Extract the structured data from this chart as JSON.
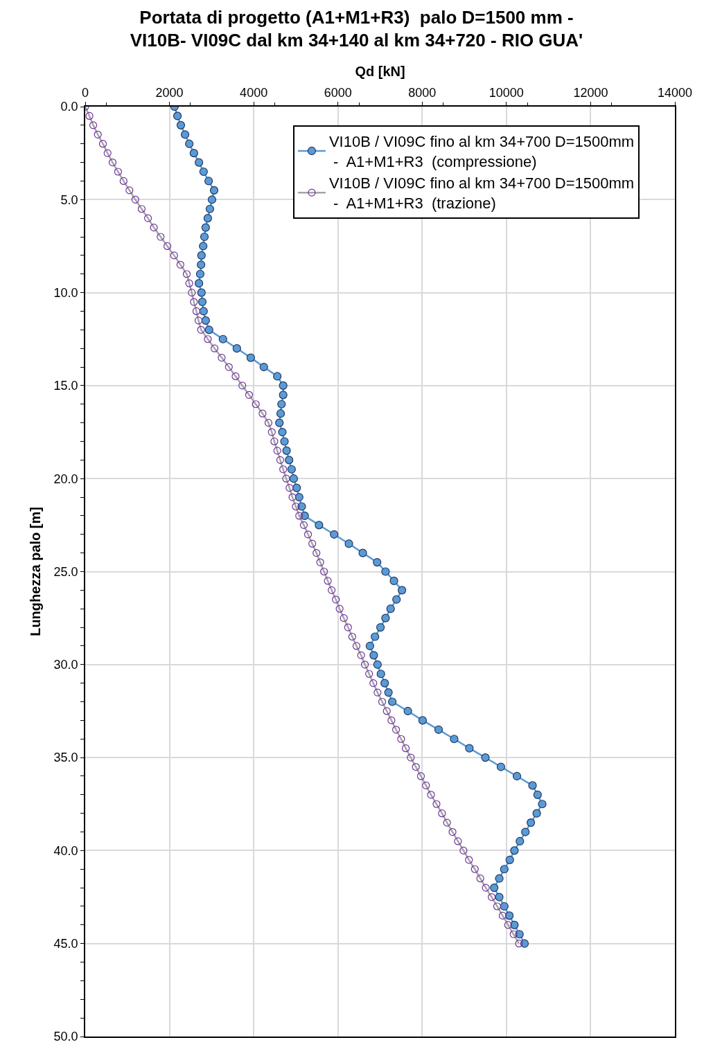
{
  "chart_data": {
    "type": "line",
    "title": "Portata di progetto (A1+M1+R3)  palo D=1500 mm -\nVI10B- VI09C dal km 34+140 al km 34+720 - RIO GUA'",
    "xlabel": "Qd [kN]",
    "ylabel": "Lunghezza palo [m]",
    "series": [
      {
        "name": "VI10B / VI09C fino al km 34+700 D=1500mm\n -  A1+M1+R3  (compressione)",
        "color": "#5b9bd5",
        "marker": "circle",
        "x": [
          2120,
          2190,
          2270,
          2370,
          2470,
          2580,
          2700,
          2810,
          2930,
          3060,
          3010,
          2960,
          2910,
          2860,
          2830,
          2800,
          2760,
          2750,
          2730,
          2700,
          2760,
          2780,
          2810,
          2860,
          2940,
          3270,
          3600,
          3930,
          4240,
          4560,
          4700,
          4700,
          4660,
          4640,
          4610,
          4680,
          4730,
          4780,
          4840,
          4900,
          4950,
          5020,
          5080,
          5140,
          5210,
          5550,
          5910,
          6260,
          6590,
          6930,
          7130,
          7330,
          7520,
          7390,
          7250,
          7130,
          7010,
          6880,
          6760,
          6850,
          6940,
          7020,
          7110,
          7200,
          7290,
          7660,
          8010,
          8390,
          8760,
          9120,
          9500,
          9870,
          10250,
          10620,
          10740,
          10850,
          10720,
          10580,
          10450,
          10320,
          10190,
          10080,
          9950,
          9830,
          9710,
          9830,
          9950,
          10070,
          10190,
          10310,
          10430
        ],
        "values": [
          0,
          0.5,
          1,
          1.5,
          2,
          2.5,
          3,
          3.5,
          4,
          4.5,
          5,
          5.5,
          6,
          6.5,
          7,
          7.5,
          8,
          8.5,
          9,
          9.5,
          10,
          10.5,
          11,
          11.5,
          12,
          12.5,
          13,
          13.5,
          14,
          14.5,
          15,
          15.5,
          16,
          16.5,
          17,
          17.5,
          18,
          18.5,
          19,
          19.5,
          20,
          20.5,
          21,
          21.5,
          22,
          22.5,
          23,
          23.5,
          24,
          24.5,
          25,
          25.5,
          26,
          26.5,
          27,
          27.5,
          28,
          28.5,
          29,
          29.5,
          30,
          30.5,
          31,
          31.5,
          32,
          32.5,
          33,
          33.5,
          34,
          34.5,
          35,
          35.5,
          36,
          36.5,
          37,
          37.5,
          38,
          38.5,
          39,
          39.5,
          40,
          40.5,
          41,
          41.5,
          42,
          42.5,
          43,
          43.5,
          44,
          44.5,
          45
        ]
      },
      {
        "name": "VI10B / VI09C fino al km 34+700 D=1500mm\n -  A1+M1+R3  (trazione)",
        "color": "#7030a0",
        "marker": "circle-open",
        "x": [
          0,
          100,
          190,
          300,
          420,
          530,
          650,
          780,
          910,
          1050,
          1190,
          1340,
          1490,
          1630,
          1790,
          1950,
          2110,
          2260,
          2410,
          2470,
          2530,
          2580,
          2640,
          2690,
          2750,
          2910,
          3070,
          3240,
          3410,
          3570,
          3730,
          3890,
          4050,
          4210,
          4350,
          4430,
          4490,
          4560,
          4630,
          4700,
          4770,
          4850,
          4920,
          5000,
          5080,
          5190,
          5290,
          5390,
          5490,
          5580,
          5670,
          5760,
          5850,
          5950,
          6040,
          6140,
          6240,
          6340,
          6440,
          6550,
          6640,
          6740,
          6840,
          6940,
          7050,
          7160,
          7270,
          7380,
          7500,
          7610,
          7730,
          7850,
          7970,
          8090,
          8210,
          8340,
          8470,
          8590,
          8720,
          8850,
          8980,
          9110,
          9250,
          9380,
          9510,
          9650,
          9780,
          9910,
          10040,
          10170,
          10300
        ],
        "values": [
          0,
          0.5,
          1,
          1.5,
          2,
          2.5,
          3,
          3.5,
          4,
          4.5,
          5,
          5.5,
          6,
          6.5,
          7,
          7.5,
          8,
          8.5,
          9,
          9.5,
          10,
          10.5,
          11,
          11.5,
          12,
          12.5,
          13,
          13.5,
          14,
          14.5,
          15,
          15.5,
          16,
          16.5,
          17,
          17.5,
          18,
          18.5,
          19,
          19.5,
          20,
          20.5,
          21,
          21.5,
          22,
          22.5,
          23,
          23.5,
          24,
          24.5,
          25,
          25.5,
          26,
          26.5,
          27,
          27.5,
          28,
          28.5,
          29,
          29.5,
          30,
          30.5,
          31,
          31.5,
          32,
          32.5,
          33,
          33.5,
          34,
          34.5,
          35,
          35.5,
          36,
          36.5,
          37,
          37.5,
          38,
          38.5,
          39,
          39.5,
          40,
          40.5,
          41,
          41.5,
          42,
          42.5,
          43,
          43.5,
          44,
          44.5,
          45
        ]
      }
    ],
    "xlim": [
      0,
      14000
    ],
    "xticks": [
      0,
      2000,
      4000,
      6000,
      8000,
      10000,
      12000,
      14000
    ],
    "ylim": [
      50,
      0
    ],
    "yticks": [
      {
        "value": 0,
        "label": "0.0"
      },
      {
        "value": 5,
        "label": "5.0"
      },
      {
        "value": 10,
        "label": "10.0"
      },
      {
        "value": 15,
        "label": "15.0"
      },
      {
        "value": 20,
        "label": "20.0"
      },
      {
        "value": 25,
        "label": "25.0"
      },
      {
        "value": 30,
        "label": "30.0"
      },
      {
        "value": 35,
        "label": "35.0"
      },
      {
        "value": 40,
        "label": "40.0"
      },
      {
        "value": 45,
        "label": "45.0"
      },
      {
        "value": 50,
        "label": "50.0"
      }
    ],
    "grid": true,
    "legend": "top right",
    "line_style": "solid"
  }
}
